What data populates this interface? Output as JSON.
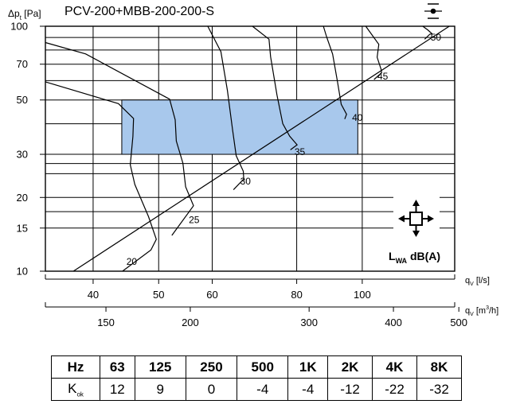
{
  "title": "PCV-200+MBB-200-200-S",
  "y_axis_label": {
    "symbol": "Δp",
    "subscript": "t",
    "unit": "[Pa]"
  },
  "x_axis_ls_label": {
    "symbol": "q",
    "subscript": "V",
    "unit": "[l/s]"
  },
  "x_axis_m3h_label": {
    "symbol": "q",
    "subscript": "V",
    "unit": "[m",
    "sup": "3",
    "tail": "/h]"
  },
  "legend_label": {
    "main": "L",
    "subscript": "WA",
    "tail": " dB(A)"
  },
  "icons": {
    "top_right": "damper-symbol-icon",
    "airflow": "four-way-arrows-icon"
  },
  "colors": {
    "operating_zone": "#a8c8ec",
    "lines": "#000000"
  },
  "chart_data": {
    "type": "line",
    "title": "PCV-200+MBB-200-200-S",
    "y_scale": "log",
    "x_scale": "log",
    "ylim": [
      10,
      100
    ],
    "xlim_ls": [
      34,
      137
    ],
    "x2lim_m3h": [
      122,
      493
    ],
    "y_ticks": [
      10,
      15,
      20,
      30,
      50,
      70,
      100
    ],
    "y_gridlines": [
      10,
      15,
      17.5,
      20,
      25,
      27.5,
      30,
      40,
      50,
      60,
      70,
      80,
      90,
      100
    ],
    "x_ticks_ls": [
      40,
      50,
      60,
      80,
      100
    ],
    "x_gridlines_ls": [
      40,
      50,
      60,
      80,
      100
    ],
    "x_ticks_m3h": [
      150,
      200,
      300,
      400,
      500
    ],
    "operating_range": {
      "x": [
        44.1,
        98.5
      ],
      "y": [
        30,
        50
      ]
    },
    "min_pressure_line": {
      "points": [
        [
          37.4,
          10
        ],
        [
          134.5,
          100
        ]
      ]
    },
    "sound_curves": [
      {
        "label": "20",
        "points": [
          [
            44.2,
            9.7
          ],
          [
            48.7,
            12.2
          ],
          [
            49.6,
            13.5
          ],
          [
            48.3,
            16.7
          ],
          [
            46.1,
            22.6
          ],
          [
            45.4,
            27.2
          ],
          [
            45.8,
            35.5
          ],
          [
            45.9,
            42
          ],
          [
            43.6,
            48.3
          ],
          [
            34,
            59.3
          ]
        ]
      },
      {
        "label": "25",
        "points": [
          [
            52.3,
            14
          ],
          [
            56.3,
            18.5
          ],
          [
            54.8,
            22.1
          ],
          [
            54.3,
            27.6
          ],
          [
            53.1,
            34
          ],
          [
            52.9,
            41.5
          ],
          [
            51.9,
            50.4
          ],
          [
            39,
            77.1
          ],
          [
            34,
            85.8
          ]
        ]
      },
      {
        "label": "30",
        "points": [
          [
            64.5,
            21.5
          ],
          [
            66.8,
            23.8
          ],
          [
            66.7,
            25.6
          ],
          [
            65.1,
            29.6
          ],
          [
            64.3,
            37.9
          ],
          [
            63.2,
            54.6
          ],
          [
            61.8,
            78.7
          ],
          [
            59.1,
            100
          ]
        ]
      },
      {
        "label": "35",
        "points": [
          [
            78.3,
            31.3
          ],
          [
            80.1,
            32.8
          ],
          [
            78.1,
            35.6
          ],
          [
            76.3,
            40
          ],
          [
            74.8,
            52.4
          ],
          [
            73.2,
            75.1
          ],
          [
            72.8,
            88.5
          ],
          [
            68.8,
            100
          ]
        ]
      },
      {
        "label": "40",
        "points": [
          [
            94.2,
            41.8
          ],
          [
            94.8,
            43.7
          ],
          [
            93.1,
            48
          ],
          [
            91.9,
            59.6
          ],
          [
            90.4,
            77
          ],
          [
            88.6,
            90.4
          ],
          [
            87.6,
            100
          ]
        ]
      },
      {
        "label": "45",
        "points": [
          [
            104.1,
            60.6
          ],
          [
            106.8,
            64.6
          ],
          [
            106.6,
            66.8
          ],
          [
            105.2,
            74.7
          ],
          [
            105.8,
            84.3
          ],
          [
            101.2,
            100
          ]
        ]
      },
      {
        "label": "50",
        "points": [
          [
            123.7,
            88.5
          ],
          [
            125.9,
            92.8
          ],
          [
            126.8,
            93.2
          ],
          [
            125.1,
            96.4
          ],
          [
            122.9,
            100
          ]
        ]
      }
    ],
    "curve_label_positions_ls": {
      "20": [
        44.8,
        10.6
      ],
      "25": [
        55.4,
        15.7
      ],
      "30": [
        66.0,
        22.6
      ],
      "35": [
        79.4,
        29.8
      ],
      "40": [
        96.6,
        41.1
      ],
      "45": [
        105.3,
        60.6
      ],
      "50": [
        126.2,
        87.4
      ]
    }
  },
  "kok_table": {
    "header_label": "Hz",
    "frequencies": [
      "63",
      "125",
      "250",
      "500",
      "1K",
      "2K",
      "4K",
      "8K"
    ],
    "row_label": "K",
    "row_label_sub": "ok",
    "values": [
      "12",
      "9",
      "0",
      "-4",
      "-4",
      "-12",
      "-22",
      "-32"
    ]
  }
}
